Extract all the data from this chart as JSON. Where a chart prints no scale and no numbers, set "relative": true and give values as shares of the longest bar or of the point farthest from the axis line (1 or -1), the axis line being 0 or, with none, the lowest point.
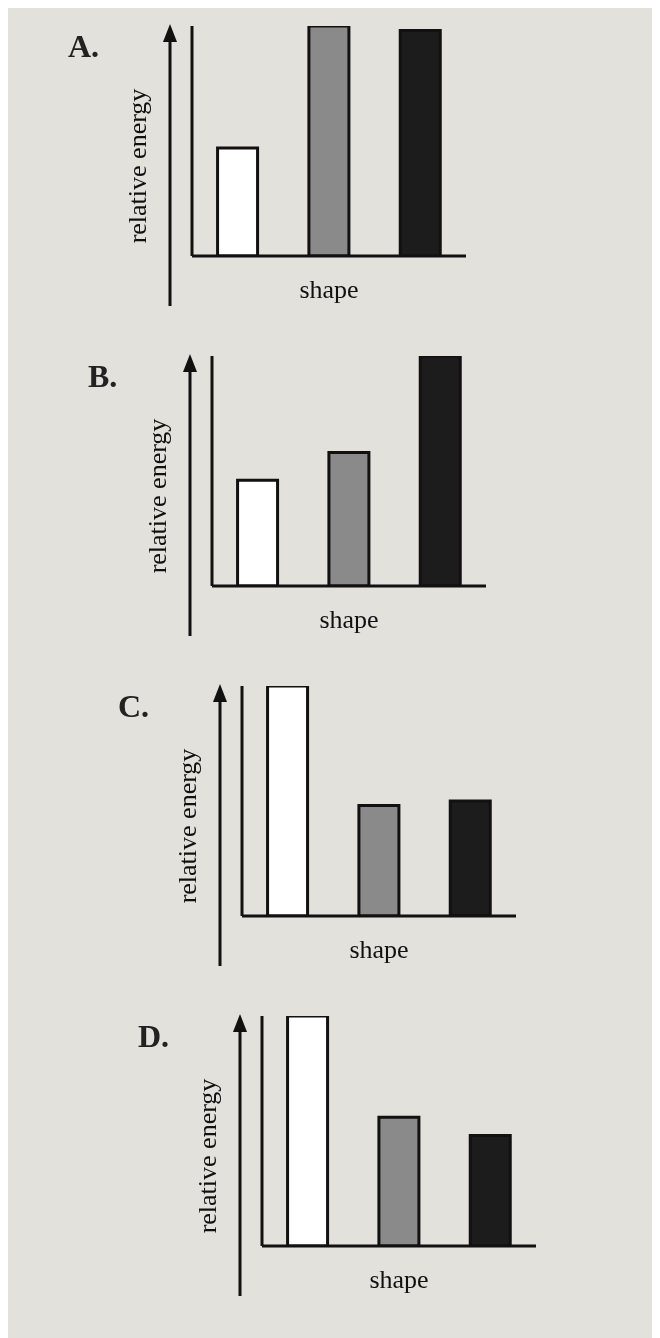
{
  "chart_data": [
    {
      "type": "bar",
      "title": "A.",
      "xlabel": "shape",
      "ylabel": "relative energy",
      "relative": true,
      "categories": [
        null,
        null,
        null
      ],
      "values": [
        0.47,
        1,
        0.98
      ],
      "colors": [
        "#ffffff",
        "#8a8a8a",
        "#1c1c1c"
      ]
    },
    {
      "type": "bar",
      "title": "B.",
      "xlabel": "shape",
      "ylabel": "relative energy",
      "relative": true,
      "categories": [
        null,
        null,
        null
      ],
      "values": [
        0.46,
        0.58,
        1
      ],
      "colors": [
        "#ffffff",
        "#8a8a8a",
        "#1c1c1c"
      ]
    },
    {
      "type": "bar",
      "title": "C.",
      "xlabel": "shape",
      "ylabel": "relative energy",
      "relative": true,
      "categories": [
        null,
        null,
        null
      ],
      "values": [
        1,
        0.48,
        0.5
      ],
      "colors": [
        "#ffffff",
        "#8a8a8a",
        "#1c1c1c"
      ]
    },
    {
      "type": "bar",
      "title": "D.",
      "xlabel": "shape",
      "ylabel": "relative energy",
      "relative": true,
      "categories": [
        null,
        null,
        null
      ],
      "values": [
        1,
        0.56,
        0.48
      ],
      "colors": [
        "#ffffff",
        "#8a8a8a",
        "#1c1c1c"
      ]
    }
  ]
}
